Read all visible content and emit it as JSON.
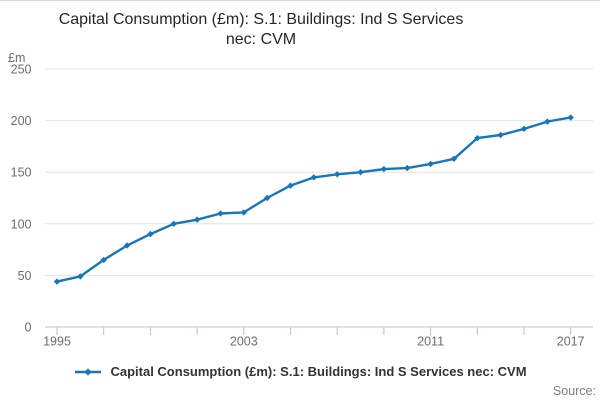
{
  "page": {
    "title_lines": [
      "Capital Consumption (£m): S.1: Buildings: Ind S Services",
      "nec: CVM"
    ],
    "source_label": "Source:"
  },
  "legend": {
    "label": "Capital Consumption (£m): S.1: Buildings: Ind S Services nec: CVM"
  },
  "chart_data": {
    "type": "line",
    "title": "Capital Consumption (£m): S.1: Buildings: Ind S Services nec: CVM",
    "unit_label": "£m",
    "x": [
      1995,
      1996,
      1997,
      1998,
      1999,
      2000,
      2001,
      2002,
      2003,
      2004,
      2005,
      2006,
      2007,
      2008,
      2009,
      2010,
      2011,
      2012,
      2013,
      2014,
      2015,
      2016,
      2017
    ],
    "series": [
      {
        "name": "Capital Consumption (£m): S.1: Buildings: Ind S Services nec: CVM",
        "values": [
          44,
          49,
          65,
          79,
          90,
          100,
          104,
          110,
          111,
          125,
          137,
          145,
          148,
          150,
          153,
          154,
          158,
          163,
          183,
          186,
          192,
          199,
          203
        ]
      }
    ],
    "ylim": [
      0,
      250
    ],
    "ytick_step": 50,
    "xtick_every": 2,
    "xtick_labels": [
      1995,
      2003,
      2011,
      2017
    ],
    "grid": "horizontal",
    "legend_position": "bottom",
    "marker": "diamond",
    "colors": {
      "line": "#1876bc",
      "grid": "#e4e4e4",
      "axis": "#b9c2cf",
      "tick_text": "#6d6d6d",
      "title_text": "#262626",
      "legend_text": "#333333",
      "source_text": "#7f7f7f"
    }
  }
}
